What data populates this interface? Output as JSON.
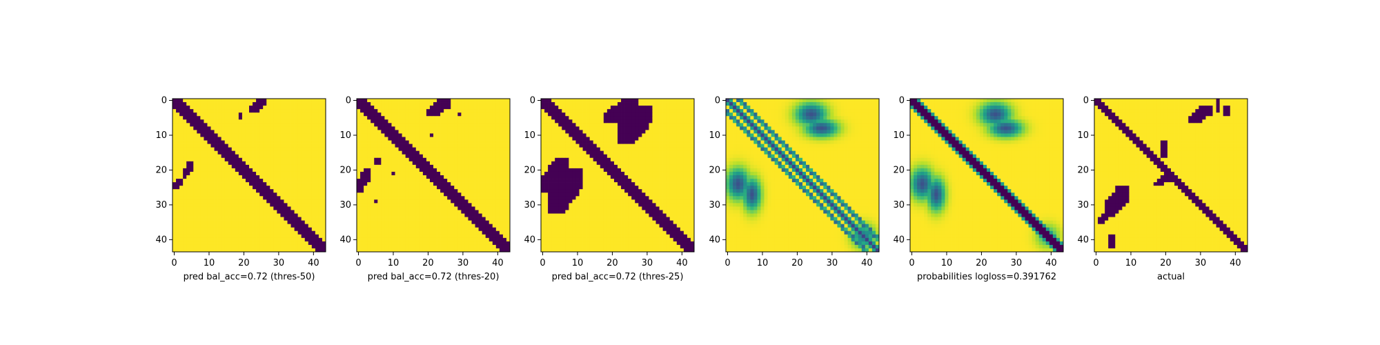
{
  "chart_data": [
    {
      "type": "heatmap",
      "xlabel": "pred bal_acc=0.72 (thres-50)",
      "x_ticks": [
        0,
        10,
        20,
        30,
        40
      ],
      "y_ticks": [
        0,
        10,
        20,
        30,
        40
      ],
      "matrix_size": 44,
      "value_range": [
        0,
        1
      ],
      "colormap": "viridis",
      "binary": true,
      "diagonal_half_width": 2,
      "blocks": [
        {
          "x_range": [
            22,
            27
          ],
          "y_range": [
            0,
            4
          ]
        },
        {
          "x_range": [
            19,
            20
          ],
          "y_range": [
            4,
            6
          ]
        },
        {
          "x_range": [
            0,
            3
          ],
          "y_range": [
            23,
            26
          ]
        },
        {
          "x_range": [
            3,
            6
          ],
          "y_range": [
            18,
            23
          ]
        }
      ]
    },
    {
      "type": "heatmap",
      "xlabel": "pred bal_acc=0.72 (thres-20)",
      "x_ticks": [
        0,
        10,
        20,
        30,
        40
      ],
      "y_ticks": [
        0,
        10,
        20,
        30,
        40
      ],
      "matrix_size": 44,
      "value_range": [
        0,
        1
      ],
      "colormap": "viridis",
      "binary": true,
      "diagonal_half_width": 2,
      "blocks": [
        {
          "x_range": [
            20,
            27
          ],
          "y_range": [
            0,
            5
          ]
        },
        {
          "x_range": [
            29,
            30
          ],
          "y_range": [
            4,
            5
          ]
        },
        {
          "x_range": [
            21,
            22
          ],
          "y_range": [
            10,
            11
          ]
        },
        {
          "x_range": [
            0,
            4
          ],
          "y_range": [
            20,
            27
          ]
        },
        {
          "x_range": [
            5,
            7
          ],
          "y_range": [
            17,
            19
          ]
        },
        {
          "x_range": [
            10,
            11
          ],
          "y_range": [
            21,
            22
          ]
        },
        {
          "x_range": [
            5,
            6
          ],
          "y_range": [
            29,
            30
          ]
        }
      ]
    },
    {
      "type": "heatmap",
      "xlabel": "pred bal_acc=0.72 (thres-25)",
      "x_ticks": [
        0,
        10,
        20,
        30,
        40
      ],
      "y_ticks": [
        0,
        10,
        20,
        30,
        40
      ],
      "matrix_size": 44,
      "value_range": [
        0,
        1
      ],
      "colormap": "viridis",
      "binary": true,
      "diagonal_half_width": 2,
      "blocks": [
        {
          "x_range": [
            18,
            28
          ],
          "y_range": [
            0,
            7
          ]
        },
        {
          "x_range": [
            22,
            32
          ],
          "y_range": [
            2,
            13
          ]
        },
        {
          "x_range": [
            0,
            8
          ],
          "y_range": [
            17,
            27
          ]
        },
        {
          "x_range": [
            2,
            12
          ],
          "y_range": [
            20,
            33
          ]
        }
      ]
    },
    {
      "type": "heatmap",
      "xlabel": "",
      "x_ticks": [
        0,
        10,
        20,
        30,
        40
      ],
      "y_ticks": [
        0,
        10,
        20,
        30,
        40
      ],
      "matrix_size": 44,
      "value_range": [
        0,
        1
      ],
      "colormap": "viridis",
      "binary": false,
      "diagonal_half_width": 0
    },
    {
      "type": "heatmap",
      "xlabel": "probabilities logloss=0.391762",
      "x_ticks": [
        0,
        10,
        20,
        30,
        40
      ],
      "y_ticks": [
        0,
        10,
        20,
        30,
        40
      ],
      "matrix_size": 44,
      "value_range": [
        0,
        1
      ],
      "colormap": "viridis",
      "binary": false,
      "diagonal_half_width": 1
    },
    {
      "type": "heatmap",
      "xlabel": "actual",
      "x_ticks": [
        0,
        10,
        20,
        30,
        40
      ],
      "y_ticks": [
        0,
        10,
        20,
        30,
        40
      ],
      "matrix_size": 44,
      "value_range": [
        0,
        1
      ],
      "colormap": "viridis",
      "binary": true,
      "diagonal_half_width": 1,
      "blocks": [
        {
          "x_range": [
            27,
            34
          ],
          "y_range": [
            2,
            7
          ]
        },
        {
          "x_range": [
            35,
            36
          ],
          "y_range": [
            0,
            4
          ]
        },
        {
          "x_range": [
            37,
            39
          ],
          "y_range": [
            2,
            5
          ]
        },
        {
          "x_range": [
            17,
            22
          ],
          "y_range": [
            22,
            25
          ]
        },
        {
          "x_range": [
            19,
            21
          ],
          "y_range": [
            12,
            17
          ]
        },
        {
          "x_range": [
            3,
            10
          ],
          "y_range": [
            25,
            34
          ]
        },
        {
          "x_range": [
            1,
            4
          ],
          "y_range": [
            33,
            36
          ]
        },
        {
          "x_range": [
            4,
            6
          ],
          "y_range": [
            39,
            43
          ]
        }
      ]
    }
  ]
}
